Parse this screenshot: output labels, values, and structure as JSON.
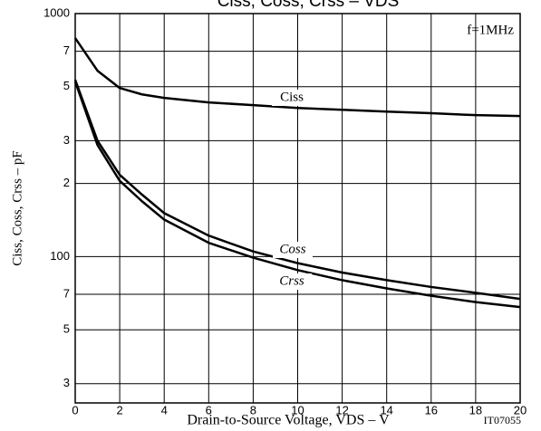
{
  "chart_data": {
    "type": "line",
    "title": "Ciss, Coss, Crss – VDS",
    "x_label": "Drain-to-Source Voltage, VDS – V",
    "y_label": "Ciss, Coss, Crss – pF",
    "annotations": [
      "f=1MHz",
      "IT07055"
    ],
    "x": [
      0,
      1,
      2,
      3,
      4,
      6,
      8,
      10,
      12,
      14,
      16,
      18,
      20
    ],
    "series": [
      {
        "name": "Ciss",
        "color": "#000000",
        "values": [
          793,
          582,
          494,
          465,
          450,
          431,
          420,
          409,
          402,
          395,
          389,
          382,
          379
        ]
      },
      {
        "name": "Coss",
        "color": "#000000",
        "values": [
          534,
          300,
          217,
          180,
          151,
          122,
          105,
          94,
          86,
          80,
          75,
          71,
          67
        ]
      },
      {
        "name": "Crss",
        "color": "#000000",
        "values": [
          525,
          288,
          205,
          169,
          142,
          114,
          99,
          88,
          80,
          74,
          69,
          65,
          62
        ]
      }
    ],
    "xlim": [
      0,
      20
    ],
    "xticks": [
      0,
      2,
      4,
      6,
      8,
      10,
      12,
      14,
      16,
      18,
      20
    ],
    "ylim": [
      25,
      1000
    ],
    "log_y": true,
    "yticks": [
      {
        "value": 30,
        "label": "3"
      },
      {
        "value": 50,
        "label": "5"
      },
      {
        "value": 70,
        "label": "7"
      },
      100,
      {
        "value": 200,
        "label": "2"
      },
      {
        "value": 300,
        "label": "3"
      },
      {
        "value": 500,
        "label": "5"
      },
      {
        "value": 700,
        "label": "7"
      },
      1000
    ],
    "grid": true
  }
}
